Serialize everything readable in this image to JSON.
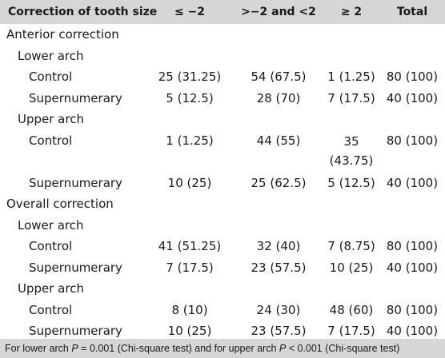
{
  "table": {
    "headers": [
      "Correction of tooth size",
      "≤ −2",
      ">−2 and <2",
      "≥ 2",
      "Total"
    ],
    "rows": [
      {
        "level": 0,
        "label": "Anterior correction",
        "cells": [
          "",
          "",
          "",
          ""
        ]
      },
      {
        "level": 1,
        "label": "Lower arch",
        "cells": [
          "",
          "",
          "",
          ""
        ]
      },
      {
        "level": 2,
        "label": "Control",
        "cells": [
          "25 (31.25)",
          "54 (67.5)",
          "1 (1.25)",
          "80 (100)"
        ]
      },
      {
        "level": 2,
        "label": "Supernumerary",
        "cells": [
          "5 (12.5)",
          "28 (70)",
          "7 (17.5)",
          "40 (100)"
        ]
      },
      {
        "level": 1,
        "label": "Upper arch",
        "cells": [
          "",
          "",
          "",
          ""
        ]
      },
      {
        "level": 2,
        "label": "Control",
        "cells": [
          "1 (1.25)",
          "44 (55)",
          "35 (43.75)",
          "80 (100)"
        ],
        "tall": true
      },
      {
        "level": 2,
        "label": "Supernumerary",
        "cells": [
          "10 (25)",
          "25 (62.5)",
          "5 (12.5)",
          "40 (100)"
        ]
      },
      {
        "level": 0,
        "label": "Overall correction",
        "cells": [
          "",
          "",
          "",
          ""
        ]
      },
      {
        "level": 1,
        "label": "Lower arch",
        "cells": [
          "",
          "",
          "",
          ""
        ]
      },
      {
        "level": 2,
        "label": "Control",
        "cells": [
          "41 (51.25)",
          "32 (40)",
          "7 (8.75)",
          "80 (100)"
        ]
      },
      {
        "level": 2,
        "label": "Supernumerary",
        "cells": [
          "7 (17.5)",
          "23 (57.5)",
          "10 (25)",
          "40 (100)"
        ]
      },
      {
        "level": 1,
        "label": "Upper arch",
        "cells": [
          "",
          "",
          "",
          ""
        ]
      },
      {
        "level": 2,
        "label": "Control",
        "cells": [
          "8 (10)",
          "24 (30)",
          "48 (60)",
          "80 (100)"
        ]
      },
      {
        "level": 2,
        "label": "Supernumerary",
        "cells": [
          "10 (25)",
          "23 (57.5)",
          "7 (17.5)",
          "40 (100)"
        ]
      }
    ]
  },
  "footnote": {
    "part1": "For lower arch ",
    "p1": "P",
    "part2": " = 0.001 (Chi-square test) and for upper arch ",
    "p2": "P",
    "part3": " < 0.001 (Chi-square test)"
  }
}
